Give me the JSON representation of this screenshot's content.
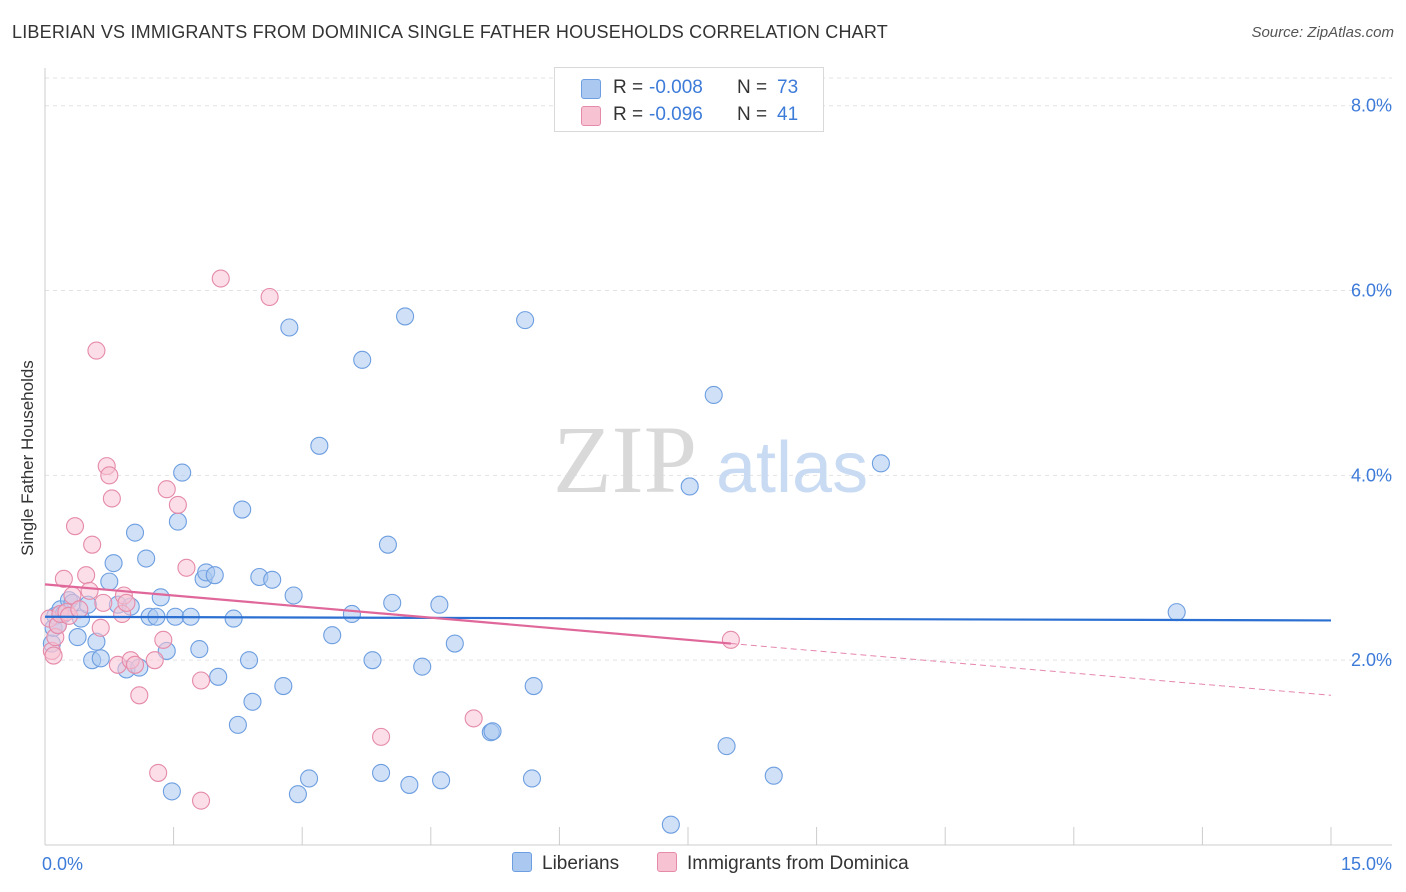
{
  "title": "LIBERIAN VS IMMIGRANTS FROM DOMINICA SINGLE FATHER HOUSEHOLDS CORRELATION CHART",
  "source": "Source: ZipAtlas.com",
  "watermark": {
    "zip": "ZIP",
    "atlas": "atlas"
  },
  "legend": {
    "rows": [
      {
        "r_label": "R =",
        "r_value": "-0.008",
        "n_label": "N =",
        "n_value": "73",
        "color": "#aac8f0",
        "border": "#6d9ee0"
      },
      {
        "r_label": "R =",
        "r_value": "-0.096",
        "n_label": "N =",
        "n_value": "41",
        "color": "#f7c3d3",
        "border": "#e58aa8"
      }
    ]
  },
  "bottom_legend": [
    {
      "label": "Liberians",
      "color": "#aac8f0",
      "border": "#6d9ee0"
    },
    {
      "label": "Immigrants from Dominica",
      "color": "#f7c3d3",
      "border": "#e58aa8"
    }
  ],
  "chart_data": {
    "type": "scatter",
    "title": "LIBERIAN VS IMMIGRANTS FROM DOMINICA SINGLE FATHER HOUSEHOLDS CORRELATION CHART",
    "xlabel": "",
    "ylabel": "Single Father Households",
    "xlim": [
      0,
      15
    ],
    "ylim": [
      0,
      8.3
    ],
    "x_tick_labels": [
      {
        "value": 0,
        "label": "0.0%"
      },
      {
        "value": 15,
        "label": "15.0%"
      }
    ],
    "y_ticks": [
      {
        "value": 2,
        "label": "2.0%"
      },
      {
        "value": 4,
        "label": "4.0%"
      },
      {
        "value": 6,
        "label": "6.0%"
      },
      {
        "value": 8,
        "label": "8.0%"
      }
    ],
    "x_minor_ticks": [
      1.5,
      3.0,
      4.5,
      6.0,
      7.5,
      9.0,
      10.5,
      12.0,
      13.5,
      15.0
    ],
    "series": [
      {
        "name": "Liberians",
        "color": "#6d9ee0",
        "fill": "#aac8f0",
        "line_color": "#2a6fd1",
        "trend": {
          "x": [
            0,
            15
          ],
          "y": [
            2.47,
            2.43
          ]
        },
        "points": [
          [
            0.08,
            2.18
          ],
          [
            0.1,
            2.35
          ],
          [
            0.12,
            2.48
          ],
          [
            0.15,
            2.38
          ],
          [
            0.18,
            2.55
          ],
          [
            0.22,
            2.5
          ],
          [
            0.28,
            2.65
          ],
          [
            0.32,
            2.62
          ],
          [
            0.38,
            2.25
          ],
          [
            0.42,
            2.45
          ],
          [
            0.5,
            2.6
          ],
          [
            0.55,
            2.0
          ],
          [
            0.6,
            2.2
          ],
          [
            0.65,
            2.02
          ],
          [
            0.75,
            2.85
          ],
          [
            0.8,
            3.05
          ],
          [
            0.85,
            2.6
          ],
          [
            0.95,
            1.9
          ],
          [
            1.0,
            2.58
          ],
          [
            1.05,
            3.38
          ],
          [
            1.1,
            1.92
          ],
          [
            1.18,
            3.1
          ],
          [
            1.22,
            2.47
          ],
          [
            1.3,
            2.47
          ],
          [
            1.35,
            2.68
          ],
          [
            1.42,
            2.1
          ],
          [
            1.48,
            0.58
          ],
          [
            1.52,
            2.47
          ],
          [
            1.55,
            3.5
          ],
          [
            1.6,
            4.03
          ],
          [
            1.7,
            2.47
          ],
          [
            1.8,
            2.12
          ],
          [
            1.85,
            2.88
          ],
          [
            1.88,
            2.95
          ],
          [
            1.98,
            2.92
          ],
          [
            2.02,
            1.82
          ],
          [
            2.2,
            2.45
          ],
          [
            2.25,
            1.3
          ],
          [
            2.3,
            3.63
          ],
          [
            2.38,
            2.0
          ],
          [
            2.42,
            1.55
          ],
          [
            2.5,
            2.9
          ],
          [
            2.65,
            2.87
          ],
          [
            2.78,
            1.72
          ],
          [
            2.85,
            5.6
          ],
          [
            2.9,
            2.7
          ],
          [
            2.95,
            0.55
          ],
          [
            3.08,
            0.72
          ],
          [
            3.2,
            4.32
          ],
          [
            3.35,
            2.27
          ],
          [
            3.58,
            2.5
          ],
          [
            3.7,
            5.25
          ],
          [
            3.82,
            2.0
          ],
          [
            3.92,
            0.78
          ],
          [
            4.0,
            3.25
          ],
          [
            4.05,
            2.62
          ],
          [
            4.2,
            5.72
          ],
          [
            4.25,
            0.65
          ],
          [
            4.4,
            1.93
          ],
          [
            4.6,
            2.6
          ],
          [
            4.62,
            0.7
          ],
          [
            4.78,
            2.18
          ],
          [
            5.2,
            1.22
          ],
          [
            5.22,
            1.23
          ],
          [
            5.6,
            5.68
          ],
          [
            5.68,
            0.72
          ],
          [
            5.7,
            1.72
          ],
          [
            7.3,
            0.22
          ],
          [
            7.52,
            3.88
          ],
          [
            7.8,
            4.87
          ],
          [
            7.95,
            1.07
          ],
          [
            8.5,
            0.75
          ],
          [
            9.75,
            4.13
          ],
          [
            13.2,
            2.52
          ]
        ]
      },
      {
        "name": "Immigrants from Dominica",
        "color": "#e58aa8",
        "fill": "#f7c3d3",
        "line_color": "#e0679a",
        "trend": {
          "x": [
            0,
            8.0
          ],
          "y": [
            2.82,
            2.18
          ]
        },
        "trend_dashed": {
          "x": [
            8.0,
            15.0
          ],
          "y": [
            2.18,
            1.62
          ]
        },
        "points": [
          [
            0.05,
            2.45
          ],
          [
            0.08,
            2.1
          ],
          [
            0.1,
            2.05
          ],
          [
            0.12,
            2.25
          ],
          [
            0.15,
            2.38
          ],
          [
            0.18,
            2.5
          ],
          [
            0.22,
            2.88
          ],
          [
            0.25,
            2.52
          ],
          [
            0.28,
            2.48
          ],
          [
            0.32,
            2.7
          ],
          [
            0.35,
            3.45
          ],
          [
            0.4,
            2.55
          ],
          [
            0.48,
            2.92
          ],
          [
            0.52,
            2.75
          ],
          [
            0.55,
            3.25
          ],
          [
            0.6,
            5.35
          ],
          [
            0.65,
            2.35
          ],
          [
            0.68,
            2.62
          ],
          [
            0.72,
            4.1
          ],
          [
            0.75,
            4.0
          ],
          [
            0.78,
            3.75
          ],
          [
            0.85,
            1.95
          ],
          [
            0.9,
            2.5
          ],
          [
            0.92,
            2.7
          ],
          [
            0.95,
            2.62
          ],
          [
            1.0,
            2.0
          ],
          [
            1.05,
            1.95
          ],
          [
            1.1,
            1.62
          ],
          [
            1.28,
            2.0
          ],
          [
            1.32,
            0.78
          ],
          [
            1.38,
            2.22
          ],
          [
            1.42,
            3.85
          ],
          [
            1.55,
            3.68
          ],
          [
            1.65,
            3.0
          ],
          [
            1.82,
            1.78
          ],
          [
            1.82,
            0.48
          ],
          [
            2.05,
            6.13
          ],
          [
            2.62,
            5.93
          ],
          [
            3.92,
            1.17
          ],
          [
            5.0,
            1.37
          ],
          [
            8.0,
            2.22
          ]
        ]
      }
    ]
  }
}
